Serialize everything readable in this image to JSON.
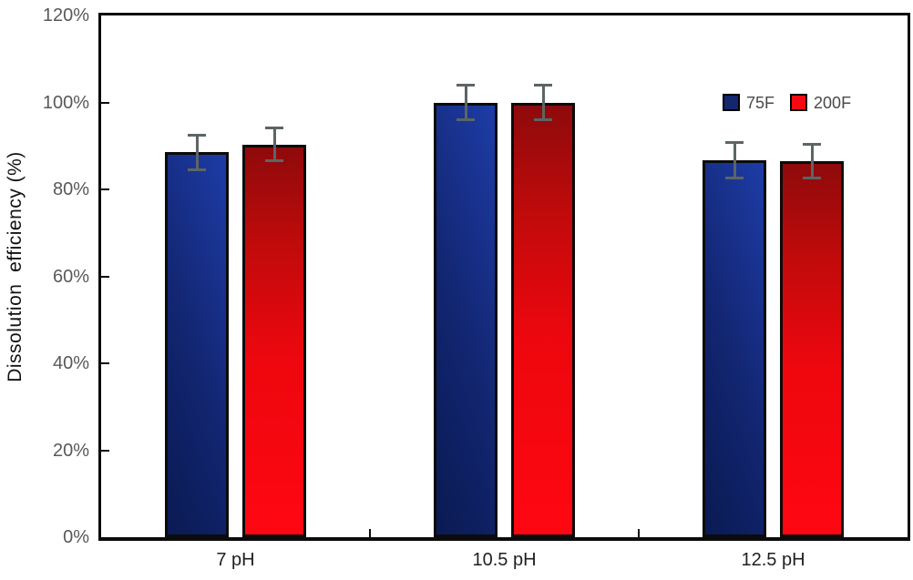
{
  "chart_data": {
    "type": "bar",
    "title": "",
    "categories": [
      "7 pH",
      "10.5 pH",
      "12.5 pH"
    ],
    "series": [
      {
        "name": "75F",
        "values": [
          88.5,
          100,
          86.7
        ],
        "errors": [
          4.3,
          4.2,
          4.3
        ],
        "swatch": "#13266e",
        "fill": {
          "direction": "70deg",
          "stops": [
            "#0a1a52 0%",
            "#122570 45%",
            "#1d3ca6 100%"
          ]
        }
      },
      {
        "name": "200F",
        "values": [
          90.3,
          100,
          86.5
        ],
        "errors": [
          4.1,
          4.2,
          4.2
        ],
        "swatch": "#f50a12",
        "fill": {
          "direction": "180deg",
          "stops": [
            "#8e0a0b 0%",
            "#c00a0b 25%",
            "#ee070e 55%",
            "#fe0712 100%"
          ]
        }
      }
    ],
    "ylabel": "Dissolution  efficiency (%)",
    "xlabel": "",
    "ylim": [
      0,
      120
    ],
    "ytick_step": 20,
    "ytick_labels": [
      "0%",
      "20%",
      "40%",
      "60%",
      "80%",
      "100%",
      "120%"
    ],
    "grid": false,
    "legend_position": "inside-top-right",
    "colors": {
      "bar_border": "#0b0b0b",
      "axis": "#0b0b0b",
      "error_bar": "#5c6565",
      "ytick_label": "#595959",
      "xtick_label": "#1f1f1f",
      "legend_label": "#4a4a4a",
      "background": "#ffffff"
    }
  }
}
